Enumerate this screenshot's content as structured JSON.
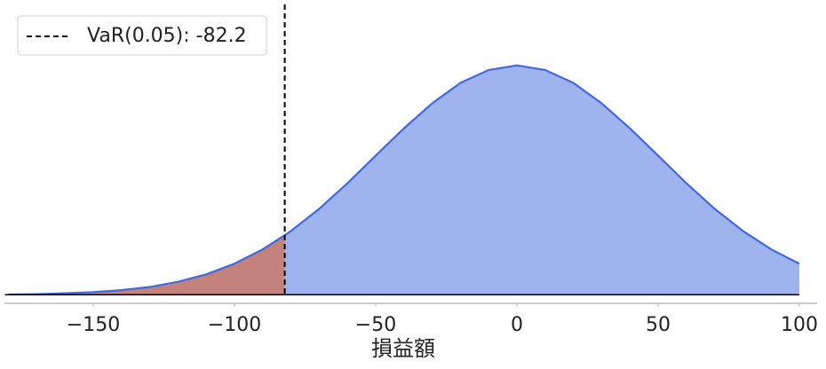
{
  "chart_data": {
    "type": "area",
    "x_label": "損益額",
    "x": [
      -180,
      -170,
      -160,
      -150,
      -140,
      -130,
      -120,
      -110,
      -100,
      -90,
      -82.2,
      -80,
      -70,
      -60,
      -50,
      -40,
      -30,
      -20,
      -10,
      0,
      10,
      20,
      30,
      40,
      50,
      60,
      70,
      80,
      90,
      100
    ],
    "series": [
      {
        "color": "#4169e1",
        "fill": "#9fb3ee",
        "tail_fill": "#c4827d",
        "values": [
          1e-05,
          2e-05,
          5e-05,
          9e-05,
          0.00016,
          0.00027,
          0.00045,
          0.00071,
          0.00108,
          0.00158,
          0.00207,
          0.00222,
          0.00299,
          0.00388,
          0.00484,
          0.00579,
          0.00666,
          0.00737,
          0.00782,
          0.00798,
          0.00782,
          0.00737,
          0.00666,
          0.00579,
          0.00484,
          0.00388,
          0.00299,
          0.00222,
          0.00158,
          0.00108
        ]
      }
    ],
    "var_line": {
      "value": -82.2,
      "label": "VaR(0.05): -82.2",
      "color": "#000000"
    },
    "xlim": [
      -180,
      100
    ],
    "ylim": [
      -0.0003,
      0.0101
    ],
    "xticks": [
      {
        "value": -150,
        "label": "−150"
      },
      {
        "value": -100,
        "label": "−100"
      },
      {
        "value": -50,
        "label": "−50"
      },
      0,
      50,
      100
    ],
    "legend": "upper left"
  }
}
